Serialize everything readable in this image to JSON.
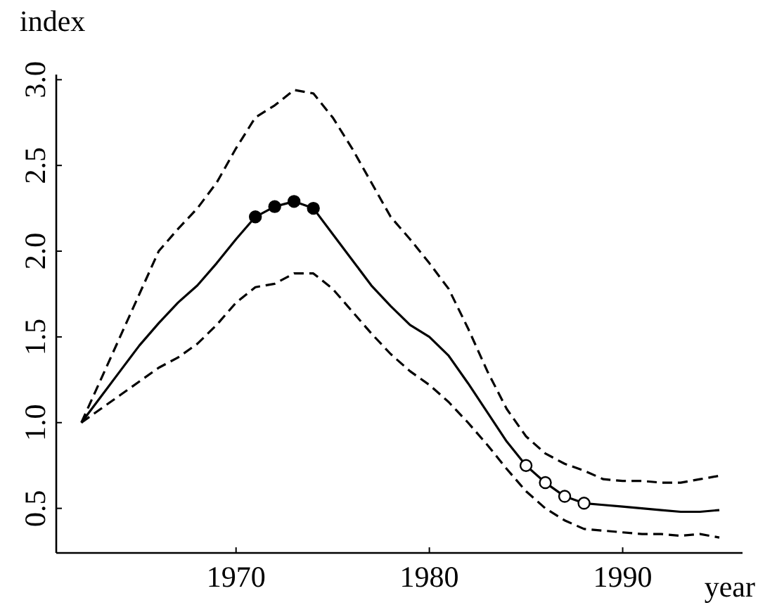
{
  "chart_data": {
    "type": "line",
    "xlabel": "year",
    "ylabel": "index",
    "xlim": [
      1960.7,
      1996.2
    ],
    "ylim": [
      0.24,
      3.03
    ],
    "xticks": [
      1970,
      1980,
      1990
    ],
    "yticks": [
      0.5,
      {
        "value": 1,
        "label": "1.0"
      },
      1.5,
      {
        "value": 2,
        "label": "2.0"
      },
      2.5,
      {
        "value": 3,
        "label": "3.0"
      }
    ],
    "x": [
      1962,
      1963,
      1964,
      1965,
      1966,
      1967,
      1968,
      1969,
      1970,
      1971,
      1972,
      1973,
      1974,
      1975,
      1976,
      1977,
      1978,
      1979,
      1980,
      1981,
      1982,
      1983,
      1984,
      1985,
      1986,
      1987,
      1988,
      1989,
      1990,
      1991,
      1992,
      1993,
      1994,
      1995
    ],
    "grid": false,
    "series": [
      {
        "color": "#000000",
        "line_style": "solid",
        "values": [
          1.0,
          1.15,
          1.3,
          1.45,
          1.58,
          1.7,
          1.8,
          1.93,
          2.07,
          2.2,
          2.26,
          2.29,
          2.25,
          2.1,
          1.95,
          1.8,
          1.68,
          1.57,
          1.5,
          1.39,
          1.23,
          1.06,
          0.89,
          0.75,
          0.65,
          0.57,
          0.53,
          0.52,
          0.51,
          0.5,
          0.49,
          0.48,
          0.48,
          0.49
        ]
      },
      {
        "color": "#000000",
        "line_style": "dashed",
        "values": [
          1.0,
          1.25,
          1.5,
          1.75,
          2.0,
          2.13,
          2.25,
          2.4,
          2.6,
          2.78,
          2.85,
          2.94,
          2.92,
          2.78,
          2.6,
          2.4,
          2.2,
          2.07,
          1.93,
          1.78,
          1.55,
          1.3,
          1.08,
          0.92,
          0.82,
          0.76,
          0.72,
          0.67,
          0.66,
          0.66,
          0.65,
          0.65,
          0.67,
          0.69
        ]
      },
      {
        "color": "#000000",
        "line_style": "dashed",
        "values": [
          1.0,
          1.08,
          1.16,
          1.24,
          1.32,
          1.38,
          1.46,
          1.57,
          1.7,
          1.79,
          1.81,
          1.87,
          1.87,
          1.78,
          1.65,
          1.52,
          1.4,
          1.3,
          1.22,
          1.12,
          1.0,
          0.87,
          0.73,
          0.6,
          0.5,
          0.43,
          0.38,
          0.37,
          0.36,
          0.35,
          0.35,
          0.34,
          0.35,
          0.33
        ]
      },
      {
        "type": "scatter",
        "marker": "circle",
        "color": "#000000",
        "x": [
          1971,
          1972,
          1973,
          1974
        ],
        "values": [
          2.2,
          2.26,
          2.29,
          2.25
        ]
      },
      {
        "type": "scatter",
        "marker": "circle",
        "color": "#000000",
        "x": [
          1985,
          1986,
          1987,
          1988
        ],
        "values": [
          0.75,
          0.65,
          0.57,
          0.53
        ]
      }
    ]
  }
}
